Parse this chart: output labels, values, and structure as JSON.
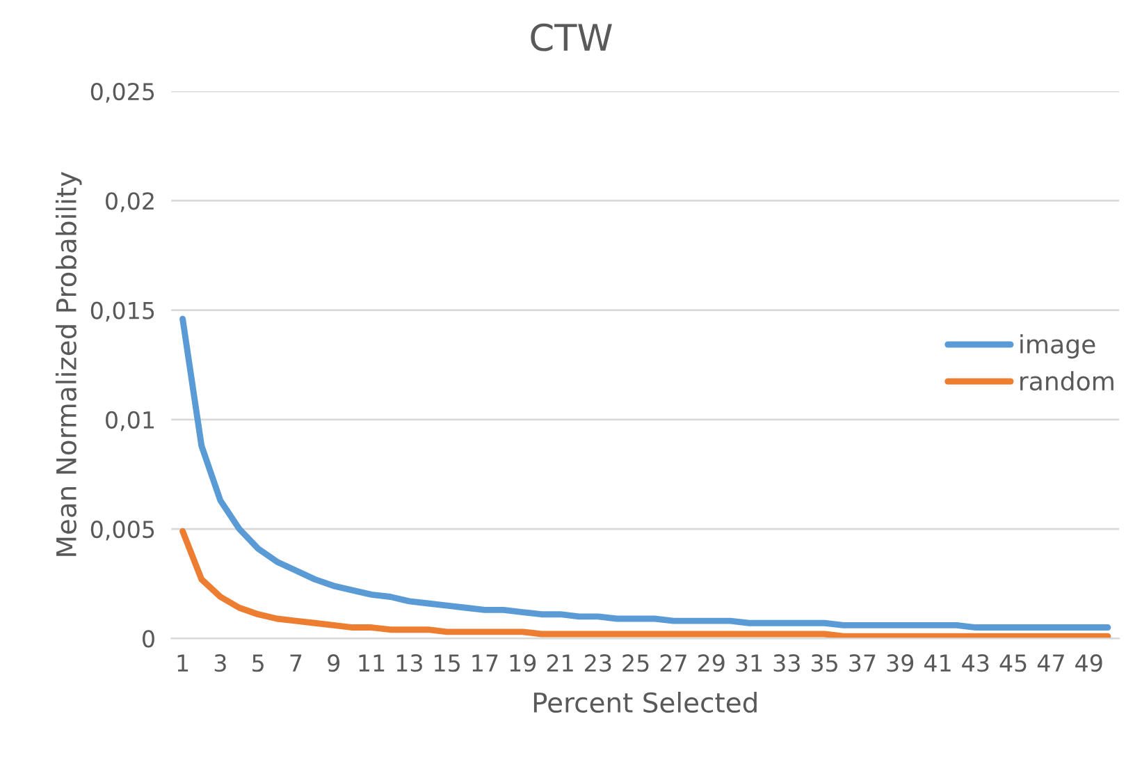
{
  "chart_data": {
    "type": "line",
    "title": "CTW",
    "xlabel": "Percent Selected",
    "ylabel": "Mean Normalized Probability",
    "categories": [
      "1",
      null,
      "3",
      null,
      "5",
      null,
      "7",
      null,
      "9",
      null,
      "11",
      null,
      "13",
      null,
      "15",
      null,
      "17",
      null,
      "19",
      null,
      "21",
      null,
      "23",
      null,
      "25",
      null,
      "27",
      null,
      "29",
      null,
      "31",
      null,
      "33",
      null,
      "35",
      null,
      "37",
      null,
      "39",
      null,
      "41",
      null,
      "43",
      null,
      "45",
      null,
      "47",
      null,
      "49",
      null
    ],
    "series": [
      {
        "name": "image",
        "color": "#5b9bd5",
        "values": [
          0.0146,
          0.0088,
          0.0063,
          0.005,
          0.0041,
          0.0035,
          0.0031,
          0.0027,
          0.0024,
          0.0022,
          0.002,
          0.0019,
          0.0017,
          0.0016,
          0.0015,
          0.0014,
          0.0013,
          0.0013,
          0.0012,
          0.0011,
          0.0011,
          0.001,
          0.001,
          0.0009,
          0.0009,
          0.0009,
          0.0008,
          0.0008,
          0.0008,
          0.0008,
          0.0007,
          0.0007,
          0.0007,
          0.0007,
          0.0007,
          0.0006,
          0.0006,
          0.0006,
          0.0006,
          0.0006,
          0.0006,
          0.0006,
          0.0005,
          0.0005,
          0.0005,
          0.0005,
          0.0005,
          0.0005,
          0.0005,
          0.0005
        ]
      },
      {
        "name": "random",
        "color": "#ed7d31",
        "values": [
          0.0049,
          0.0027,
          0.0019,
          0.0014,
          0.0011,
          0.0009,
          0.0008,
          0.0007,
          0.0006,
          0.0005,
          0.0005,
          0.0004,
          0.0004,
          0.0004,
          0.0003,
          0.0003,
          0.0003,
          0.0003,
          0.0003,
          0.0002,
          0.0002,
          0.0002,
          0.0002,
          0.0002,
          0.0002,
          0.0002,
          0.0002,
          0.0002,
          0.0002,
          0.0002,
          0.0002,
          0.0002,
          0.0002,
          0.0002,
          0.0002,
          0.0001,
          0.0001,
          0.0001,
          0.0001,
          0.0001,
          0.0001,
          0.0001,
          0.0001,
          0.0001,
          0.0001,
          0.0001,
          0.0001,
          0.0001,
          0.0001,
          0.0001
        ]
      }
    ],
    "ylim": [
      0,
      0.025
    ],
    "yticks": [
      {
        "value": 0,
        "label": "0"
      },
      {
        "value": 0.005,
        "label": "0,005"
      },
      {
        "value": 0.01,
        "label": "0,01"
      },
      {
        "value": 0.015,
        "label": "0,015"
      },
      {
        "value": 0.02,
        "label": "0,02"
      },
      {
        "value": 0.025,
        "label": "0,025"
      }
    ],
    "grid": "y",
    "legend": "right",
    "marker": "none",
    "line_style": "solid"
  }
}
